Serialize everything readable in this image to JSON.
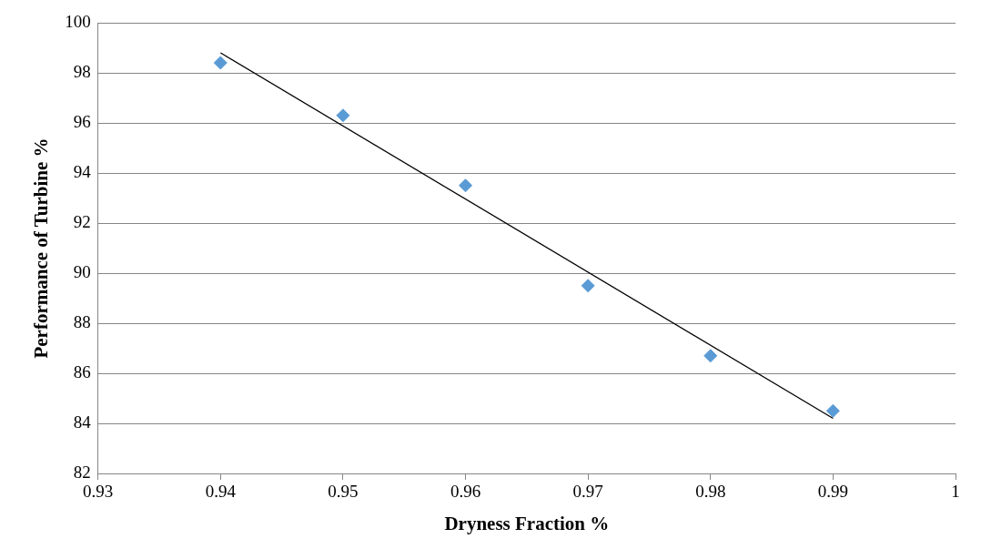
{
  "chart_data": {
    "type": "scatter",
    "xlabel": "Dryness Fraction %",
    "ylabel": "Performance of Turbine %",
    "xlim": [
      0.93,
      1
    ],
    "xticks": [
      0.93,
      0.94,
      0.95,
      0.96,
      0.97,
      0.98,
      0.99,
      1
    ],
    "ylim": [
      82,
      100
    ],
    "yticks": [
      82,
      84,
      86,
      88,
      90,
      92,
      94,
      96,
      98,
      100
    ],
    "grid": "y",
    "legend": false,
    "marker": "diamond",
    "series": [
      {
        "type": "scatter",
        "color": "#5b9bd5",
        "x": [
          0.94,
          0.95,
          0.96,
          0.97,
          0.98,
          0.99
        ],
        "values": [
          98.4,
          96.3,
          93.5,
          89.5,
          86.7,
          84.5
        ]
      },
      {
        "type": "line",
        "color": "#000000",
        "x": [
          0.94,
          0.99
        ],
        "values": [
          98.8,
          84.2
        ],
        "marker": "none"
      }
    ]
  }
}
